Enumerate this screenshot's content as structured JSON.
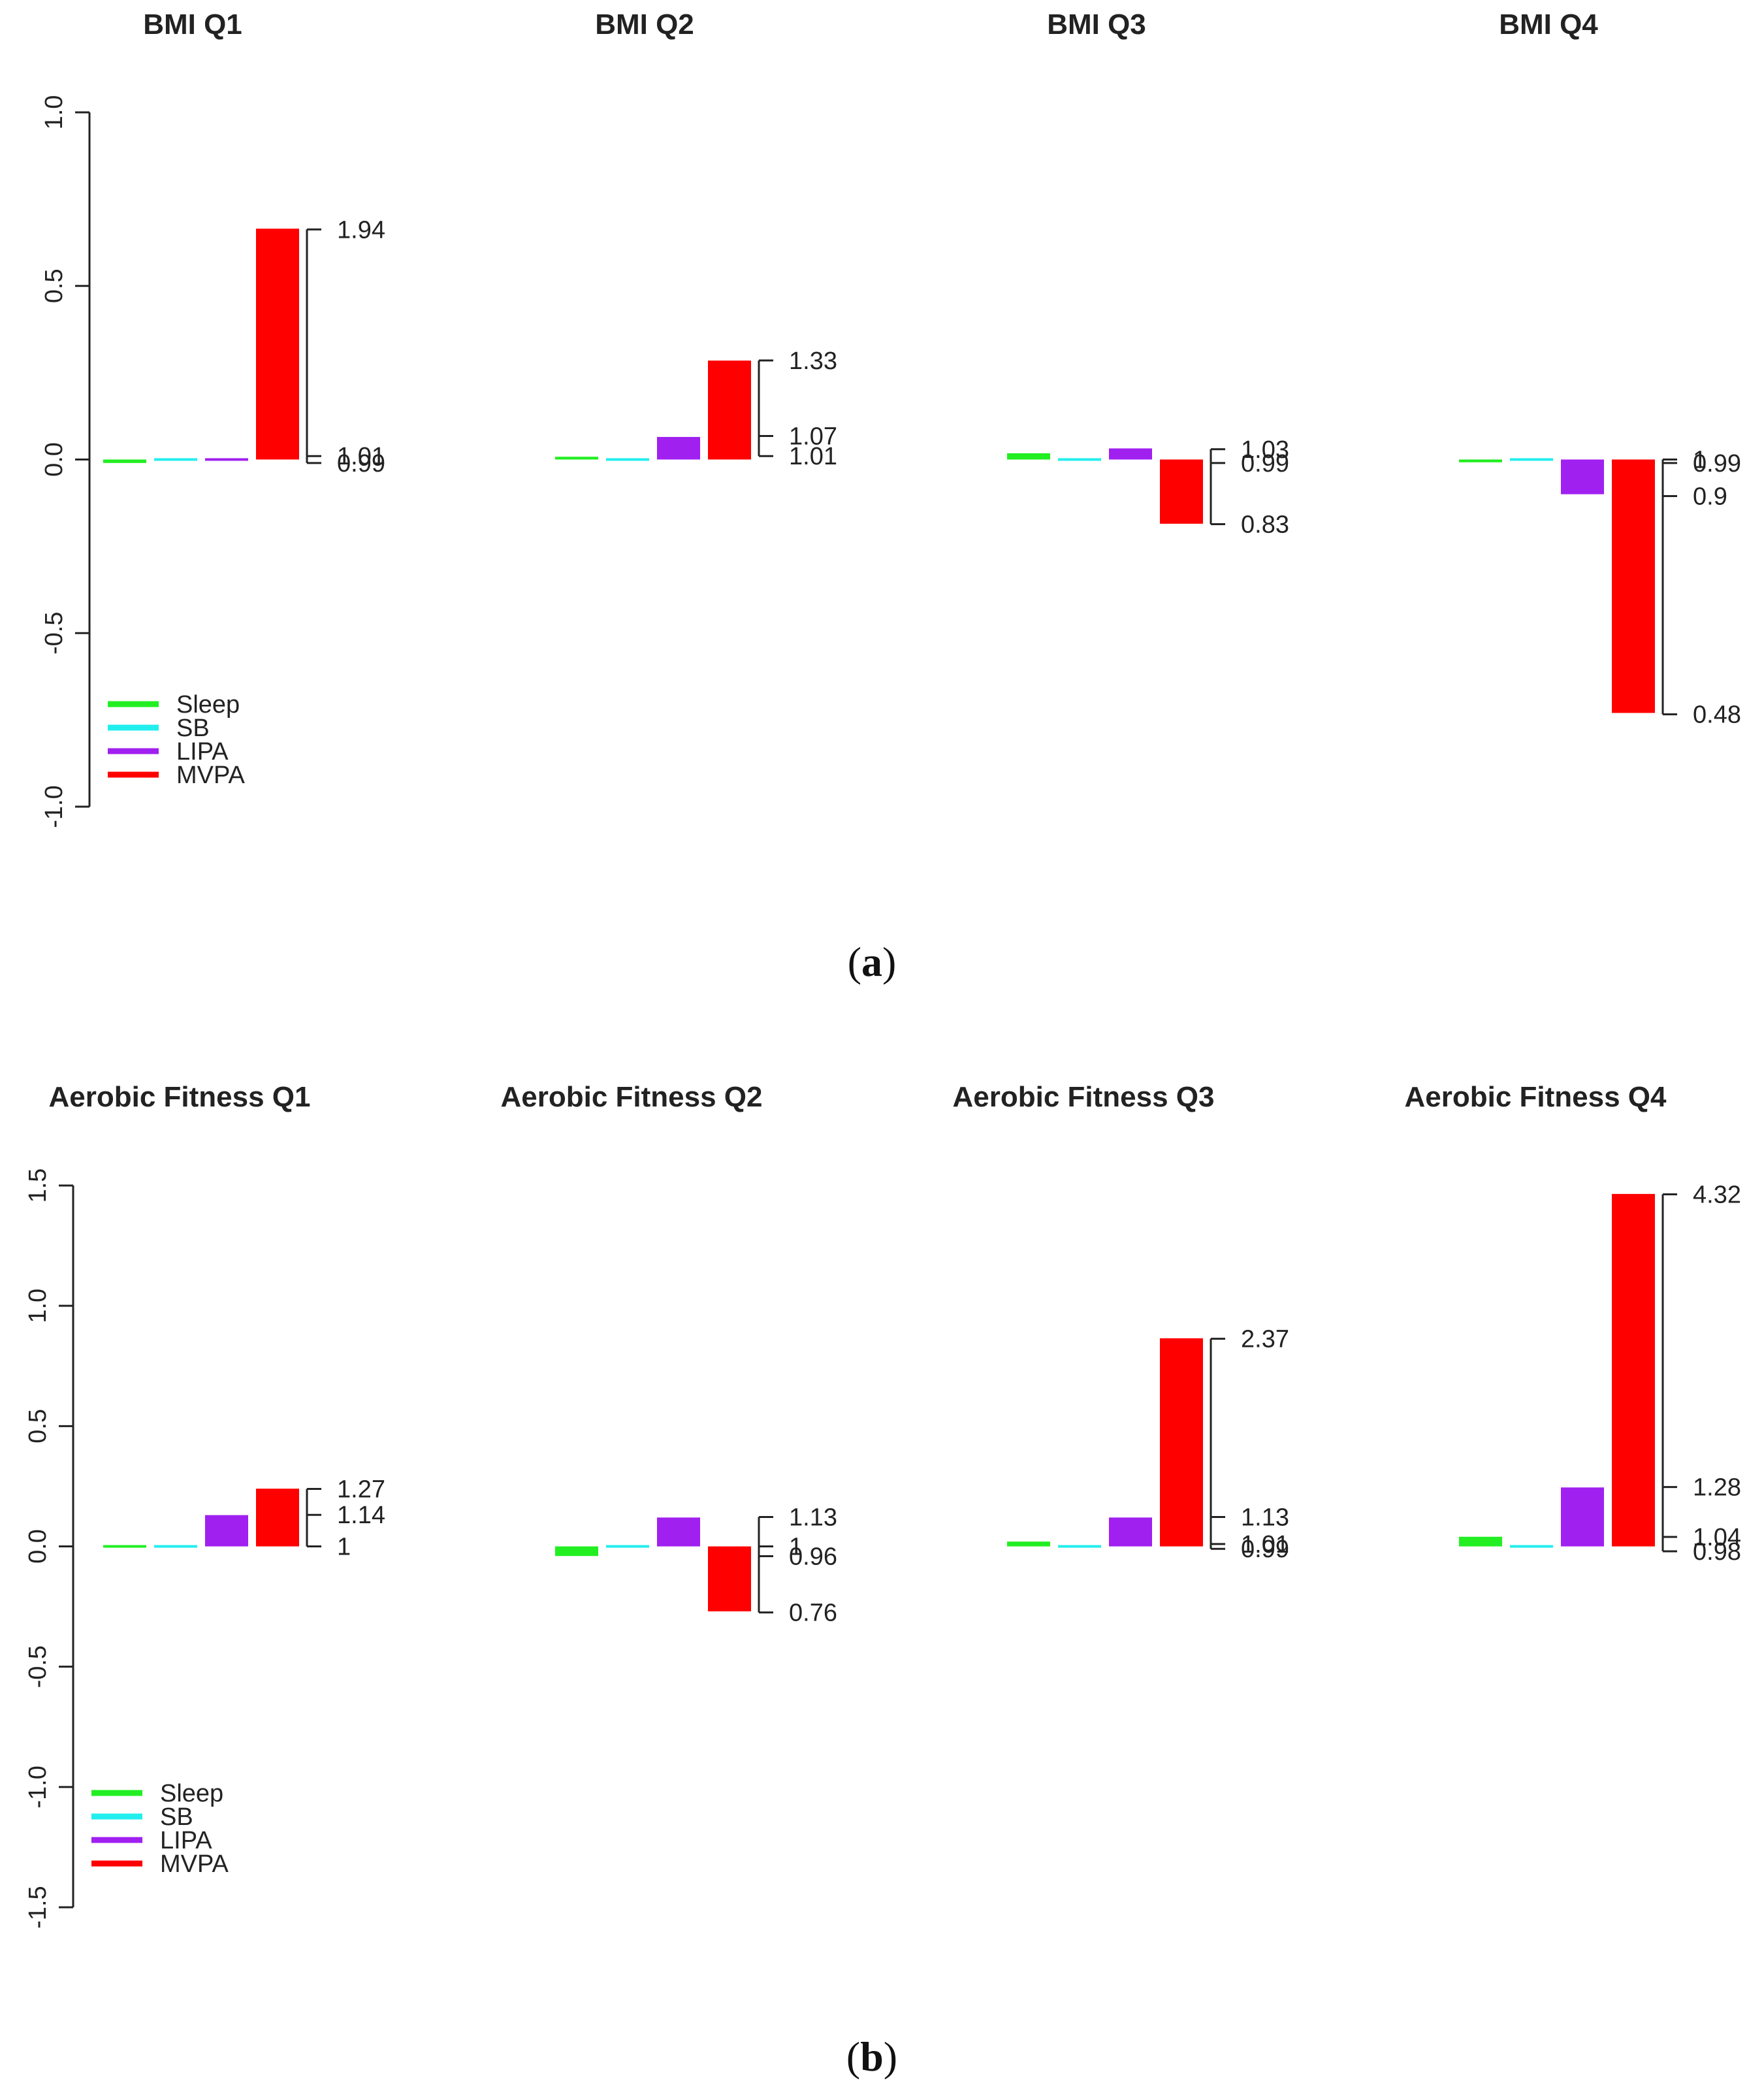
{
  "colors": {
    "Sleep": "#22ee22",
    "SB": "#22eeee",
    "LIPA": "#a020f0",
    "MVPA": "#ff0000"
  },
  "panels": [
    {
      "label": "a",
      "open": "(",
      "close": ")"
    },
    {
      "label": "b",
      "open": "(",
      "close": ")"
    }
  ],
  "chart_data": [
    {
      "type": "bar",
      "title": "BMI Q1",
      "categories": [
        "Sleep",
        "SB",
        "LIPA",
        "MVPA"
      ],
      "values": [
        -0.01,
        0.005,
        0.005,
        0.665
      ],
      "ylim": [
        -1.0,
        1.0
      ],
      "yticks": [
        "-1.0",
        "-0.5",
        "0.0",
        "0.5",
        "1.0"
      ],
      "or_markers": [
        1.94,
        1.01,
        0.99
      ],
      "or_labels": [
        "1.94",
        "1.01",
        "0.99"
      ],
      "legend": [
        "Sleep",
        "SB",
        "LIPA",
        "MVPA"
      ]
    },
    {
      "type": "bar",
      "title": "BMI Q2",
      "categories": [
        "Sleep",
        "SB",
        "LIPA",
        "MVPA"
      ],
      "values": [
        0.008,
        0.003,
        0.065,
        0.285
      ],
      "ylim": [
        -1.0,
        1.0
      ],
      "or_markers": [
        1.33,
        1.07,
        1.01
      ],
      "or_labels": [
        "1.33",
        "1.07",
        "1.01"
      ]
    },
    {
      "type": "bar",
      "title": "BMI Q3",
      "categories": [
        "Sleep",
        "SB",
        "LIPA",
        "MVPA"
      ],
      "values": [
        0.018,
        -0.004,
        0.032,
        -0.185
      ],
      "ylim": [
        -1.0,
        1.0
      ],
      "or_markers": [
        1.03,
        0.99,
        0.83
      ],
      "or_labels": [
        "1.03",
        "0.99",
        "0.83"
      ]
    },
    {
      "type": "bar",
      "title": "BMI Q4",
      "categories": [
        "Sleep",
        "SB",
        "LIPA",
        "MVPA"
      ],
      "values": [
        -0.008,
        0.0,
        -0.1,
        -0.73
      ],
      "ylim": [
        -1.0,
        1.0
      ],
      "or_markers": [
        1.0,
        0.99,
        0.9,
        0.48
      ],
      "or_labels": [
        "1",
        "0.99",
        "0.9",
        "0.48"
      ]
    },
    {
      "type": "bar",
      "title": "Aerobic Fitness Q1",
      "categories": [
        "Sleep",
        "SB",
        "LIPA",
        "MVPA"
      ],
      "values": [
        0.004,
        0.006,
        0.13,
        0.24
      ],
      "ylim": [
        -1.5,
        1.5
      ],
      "yticks": [
        "-1.5",
        "-1.0",
        "-0.5",
        "0.0",
        "0.5",
        "1.0",
        "1.5"
      ],
      "or_markers": [
        1.27,
        1.14,
        1.0
      ],
      "or_labels": [
        "1.27",
        "1.14",
        "1"
      ],
      "legend": [
        "Sleep",
        "SB",
        "LIPA",
        "MVPA"
      ]
    },
    {
      "type": "bar",
      "title": "Aerobic Fitness Q2",
      "categories": [
        "Sleep",
        "SB",
        "LIPA",
        "MVPA"
      ],
      "values": [
        -0.04,
        0.005,
        0.12,
        -0.27
      ],
      "ylim": [
        -1.5,
        1.5
      ],
      "or_markers": [
        1.13,
        1.0,
        0.96,
        0.76
      ],
      "or_labels": [
        "1.13",
        "1",
        "0.96",
        "0.76"
      ]
    },
    {
      "type": "bar",
      "title": "Aerobic Fitness Q3",
      "categories": [
        "Sleep",
        "SB",
        "LIPA",
        "MVPA"
      ],
      "values": [
        0.02,
        0.003,
        0.12,
        0.865
      ],
      "ylim": [
        -1.5,
        1.5
      ],
      "or_markers": [
        2.37,
        1.13,
        1.01,
        0.99
      ],
      "or_labels": [
        "2.37",
        "1.13",
        "1.01",
        "0.99"
      ]
    },
    {
      "type": "bar",
      "title": "Aerobic Fitness Q4",
      "categories": [
        "Sleep",
        "SB",
        "LIPA",
        "MVPA"
      ],
      "values": [
        0.04,
        -0.008,
        0.245,
        1.465
      ],
      "ylim": [
        -1.5,
        1.5
      ],
      "or_markers": [
        4.32,
        1.28,
        1.04,
        0.98
      ],
      "or_labels": [
        "4.32",
        "1.28",
        "1.04",
        "0.98"
      ]
    }
  ]
}
